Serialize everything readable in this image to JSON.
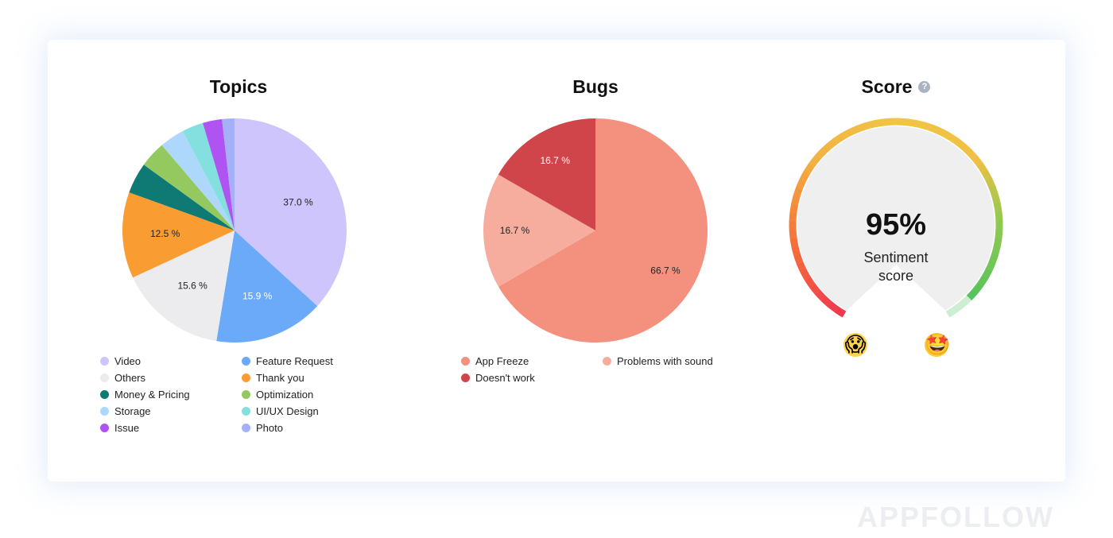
{
  "chart_data": [
    {
      "type": "pie",
      "title": "Topics",
      "slices": [
        {
          "label": "Video",
          "value": 37.0,
          "color": "#cfc5fd",
          "data_label": "37.0 %"
        },
        {
          "label": "Feature Request",
          "value": 15.9,
          "color": "#6aaaf9",
          "data_label": "15.9 %"
        },
        {
          "label": "Others",
          "value": 15.6,
          "color": "#ececee",
          "data_label": "15.6 %"
        },
        {
          "label": "Thank you",
          "value": 12.5,
          "color": "#f99d33",
          "data_label": "12.5 %"
        },
        {
          "label": "Money & Pricing",
          "value": 4.5,
          "color": "#0f7a73",
          "data_label": ""
        },
        {
          "label": "Optimization",
          "value": 3.8,
          "color": "#94c95f",
          "data_label": ""
        },
        {
          "label": "Storage",
          "value": 3.6,
          "color": "#add8fb",
          "data_label": ""
        },
        {
          "label": "UI/UX Design",
          "value": 3.1,
          "color": "#84e0df",
          "data_label": ""
        },
        {
          "label": "Issue",
          "value": 2.8,
          "color": "#b053f3",
          "data_label": ""
        },
        {
          "label": "Photo",
          "value": 1.8,
          "color": "#a6b0f9",
          "data_label": ""
        }
      ],
      "legend": [
        "Video",
        "Feature Request",
        "Others",
        "Thank you",
        "Money & Pricing",
        "Optimization",
        "Storage",
        "UI/UX Design",
        "Issue",
        "Photo"
      ],
      "legend_placement": "bottom"
    },
    {
      "type": "pie",
      "title": "Bugs",
      "slices": [
        {
          "label": "App Freeze",
          "value": 66.7,
          "color": "#f4917e",
          "data_label": "66.7 %"
        },
        {
          "label": "Problems with sound",
          "value": 16.7,
          "color": "#f7ad9e",
          "data_label": "16.7 %"
        },
        {
          "label": "Doesn't work",
          "value": 16.7,
          "color": "#d0454a",
          "data_label": "16.7 %"
        }
      ],
      "legend": [
        "App Freeze",
        "Problems with sound",
        "Doesn't work"
      ],
      "legend_placement": "bottom"
    },
    {
      "type": "gauge",
      "title": "Score",
      "value": 95,
      "value_label": "95%",
      "label": "Sentiment\nscore",
      "min_icon": "screaming-face-emoji",
      "max_icon": "star-struck-emoji",
      "colors": {
        "low": "#f0384e",
        "mid_low": "#f7873a",
        "mid": "#f1c544",
        "high": "#3cc161",
        "remaining": "#cdeed3",
        "fill": "#efefef"
      }
    }
  ],
  "watermark": "APPFOLLOW"
}
